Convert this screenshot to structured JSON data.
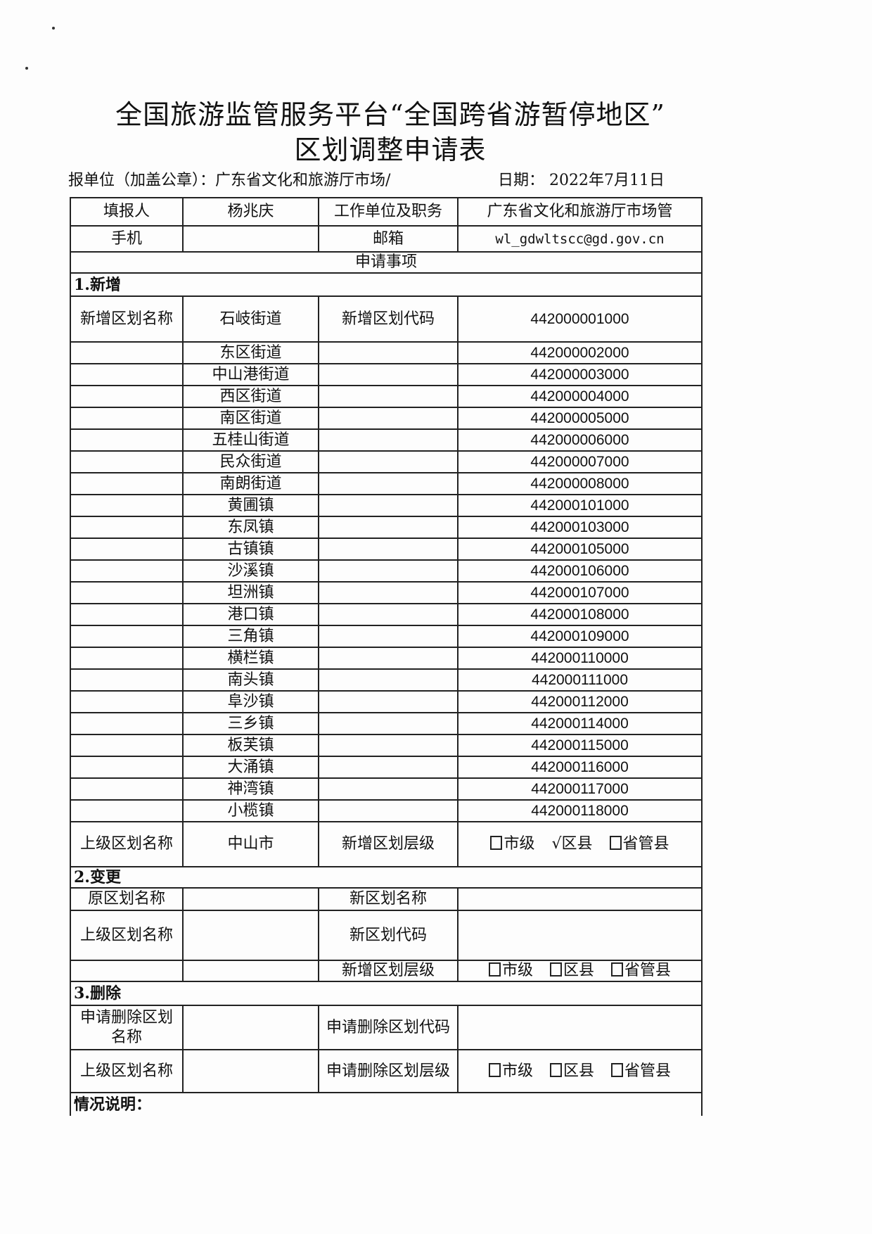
{
  "title_line1": "全国旅游监管服务平台“全国跨省游暂停地区”",
  "title_line2": "区划调整申请表",
  "unit_label": "报单位（加盖公章）：广东省文化和旅游厅市场/",
  "date_label": "日期：  2022年7月11日",
  "header": {
    "reporter_label": "填报人",
    "reporter": "杨兆庆",
    "work_label": "工作单位及职务",
    "work": "广东省文化和旅游厅市场管",
    "phone_label": "手机",
    "phone": "",
    "email_label": "邮箱",
    "email": "wl_gdwltscc@gd.gov.cn",
    "section_title": "申请事项"
  },
  "add": {
    "heading": "1.新增",
    "name_label": "新增区划名称",
    "code_label": "新增区划代码",
    "items": [
      {
        "name": "石岐街道",
        "code": "442000001000"
      },
      {
        "name": "东区街道",
        "code": "442000002000"
      },
      {
        "name": "中山港街道",
        "code": "442000003000"
      },
      {
        "name": "西区街道",
        "code": "442000004000"
      },
      {
        "name": "南区街道",
        "code": "442000005000"
      },
      {
        "name": "五桂山街道",
        "code": "442000006000"
      },
      {
        "name": "民众街道",
        "code": "442000007000"
      },
      {
        "name": "南朗街道",
        "code": "442000008000"
      },
      {
        "name": "黄圃镇",
        "code": "442000101000"
      },
      {
        "name": "东凤镇",
        "code": "442000103000"
      },
      {
        "name": "古镇镇",
        "code": "442000105000"
      },
      {
        "name": "沙溪镇",
        "code": "442000106000"
      },
      {
        "name": "坦洲镇",
        "code": "442000107000"
      },
      {
        "name": "港口镇",
        "code": "442000108000"
      },
      {
        "name": "三角镇",
        "code": "442000109000"
      },
      {
        "name": "横栏镇",
        "code": "442000110000"
      },
      {
        "name": "南头镇",
        "code": "442000111000"
      },
      {
        "name": "阜沙镇",
        "code": "442000112000"
      },
      {
        "name": "三乡镇",
        "code": "442000114000"
      },
      {
        "name": "板芙镇",
        "code": "442000115000"
      },
      {
        "name": "大涌镇",
        "code": "442000116000"
      },
      {
        "name": "神湾镇",
        "code": "442000117000"
      },
      {
        "name": "小榄镇",
        "code": "442000118000"
      }
    ],
    "parent_label": "上级区划名称",
    "parent": "中山市",
    "level_label": "新增区划层级",
    "levels": [
      {
        "label": "市级",
        "checked": false
      },
      {
        "label": "区县",
        "checked": true
      },
      {
        "label": "省管县",
        "checked": false
      }
    ]
  },
  "change": {
    "heading": "2.变更",
    "orig_label": "原区划名称",
    "new_name_label": "新区划名称",
    "parent_label": "上级区划名称",
    "new_code_label": "新区划代码",
    "level_label": "新增区划层级",
    "levels": [
      {
        "label": "市级",
        "checked": false
      },
      {
        "label": "区县",
        "checked": false
      },
      {
        "label": "省管县",
        "checked": false
      }
    ]
  },
  "delete": {
    "heading": "3.删除",
    "name_label": "申请删除区划名称",
    "code_label": "申请删除区划代码",
    "parent_label": "上级区划名称",
    "level_label": "申请删除区划层级",
    "levels": [
      {
        "label": "市级",
        "checked": false
      },
      {
        "label": "区县",
        "checked": false
      },
      {
        "label": "省管县",
        "checked": false
      }
    ]
  },
  "note_label": "情况说明："
}
